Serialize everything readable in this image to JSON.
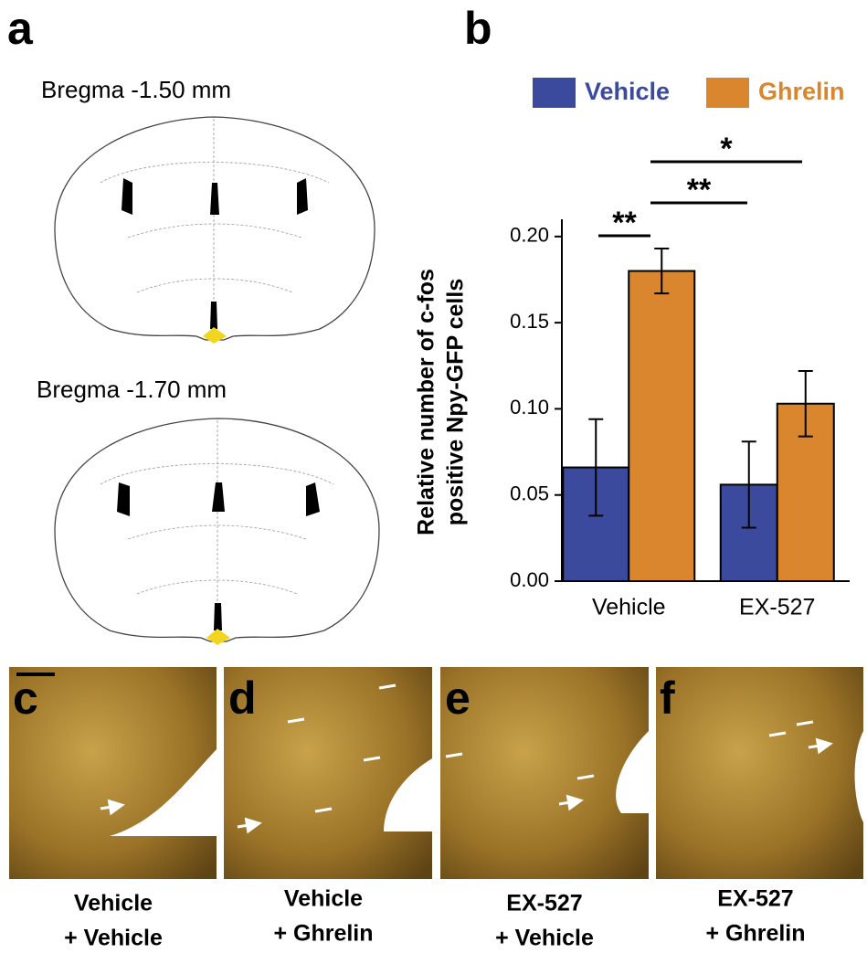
{
  "panels": {
    "a": "a",
    "b": "b",
    "c": "c",
    "d": "d",
    "e": "e",
    "f": "f"
  },
  "atlas": [
    "Bregma -1.50 mm",
    "Bregma -1.70 mm"
  ],
  "chart_data": {
    "type": "bar",
    "legend_position": "top",
    "ylabel": [
      "Relative number of c-fos",
      "positive Npy-GFP cells"
    ],
    "categories": [
      "Vehicle",
      "EX-527"
    ],
    "series": [
      {
        "name": "Vehicle",
        "color": "#3b4a9c",
        "values": [
          0.066,
          0.056
        ],
        "errors": [
          0.028,
          0.025
        ]
      },
      {
        "name": "Ghrelin",
        "color": "#d9862e",
        "values": [
          0.18,
          0.103
        ],
        "errors": [
          0.013,
          0.019
        ]
      }
    ],
    "ylim": [
      0,
      0.21
    ],
    "yticks": [
      {
        "value": 0,
        "label": "0.00"
      },
      0.05,
      {
        "value": 0.1,
        "label": "0.10"
      },
      0.15,
      {
        "value": 0.2,
        "label": "0.20"
      }
    ],
    "annotations": [
      "**",
      "**",
      "*"
    ]
  },
  "captions": [
    [
      "Vehicle",
      "+ Vehicle"
    ],
    [
      "Vehicle",
      "+ Ghrelin"
    ],
    [
      "EX-527",
      "+ Vehicle"
    ],
    [
      "EX-527",
      "+ Ghrelin"
    ]
  ]
}
